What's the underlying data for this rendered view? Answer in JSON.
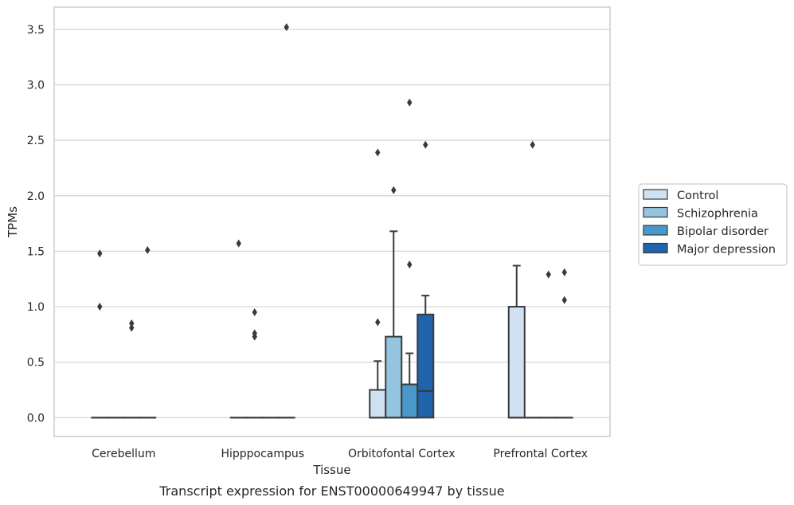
{
  "caption": "Transcript expression for ENST00000649947 by tissue",
  "chart_data": {
    "type": "box",
    "xlabel": "Tissue",
    "ylabel": "TPMs",
    "ylim": [
      -0.17,
      3.7
    ],
    "yticks": [
      0.0,
      0.5,
      1.0,
      1.5,
      2.0,
      2.5,
      3.0,
      3.5
    ],
    "ytick_labels": [
      "0.0",
      "0.5",
      "1.0",
      "1.5",
      "2.0",
      "2.5",
      "3.0",
      "3.5"
    ],
    "categories": [
      "Cerebellum",
      "Hipppocampus",
      "Orbitofontal Cortex",
      "Prefrontal Cortex"
    ],
    "grid": "horizontal",
    "legend_position": "right",
    "series": [
      {
        "name": "Control",
        "color": "#d0e1f2",
        "boxes": [
          {
            "q1": 0,
            "median": 0,
            "q3": 0,
            "whisker_low": 0,
            "whisker_high": 0,
            "outliers": [
              1.48,
              1.0
            ]
          },
          {
            "q1": 0,
            "median": 0,
            "q3": 0,
            "whisker_low": 0,
            "whisker_high": 0,
            "outliers": [
              1.57
            ]
          },
          {
            "q1": 0,
            "median": 0,
            "q3": 0.25,
            "whisker_low": 0,
            "whisker_high": 0.51,
            "outliers": [
              2.39,
              0.86
            ]
          },
          {
            "q1": 0,
            "median": 0,
            "q3": 1.0,
            "whisker_low": 0,
            "whisker_high": 1.37,
            "outliers": []
          }
        ]
      },
      {
        "name": "Schizophrenia",
        "color": "#94c4df",
        "boxes": [
          {
            "q1": 0,
            "median": 0,
            "q3": 0,
            "whisker_low": 0,
            "whisker_high": 0,
            "outliers": []
          },
          {
            "q1": 0,
            "median": 0,
            "q3": 0,
            "whisker_low": 0,
            "whisker_high": 0,
            "outliers": [
              0.95,
              0.76,
              0.73
            ]
          },
          {
            "q1": 0,
            "median": 0,
            "q3": 0.73,
            "whisker_low": 0,
            "whisker_high": 1.68,
            "outliers": [
              2.05
            ]
          },
          {
            "q1": 0,
            "median": 0,
            "q3": 0,
            "whisker_low": 0,
            "whisker_high": 0,
            "outliers": [
              2.46
            ]
          }
        ]
      },
      {
        "name": "Bipolar disorder",
        "color": "#4a98c9",
        "boxes": [
          {
            "q1": 0,
            "median": 0,
            "q3": 0,
            "whisker_low": 0,
            "whisker_high": 0,
            "outliers": [
              0.85,
              0.81
            ]
          },
          {
            "q1": 0,
            "median": 0,
            "q3": 0,
            "whisker_low": 0,
            "whisker_high": 0,
            "outliers": []
          },
          {
            "q1": 0,
            "median": 0,
            "q3": 0.3,
            "whisker_low": 0,
            "whisker_high": 0.58,
            "outliers": [
              2.84,
              1.38
            ]
          },
          {
            "q1": 0,
            "median": 0,
            "q3": 0,
            "whisker_low": 0,
            "whisker_high": 0,
            "outliers": [
              1.29
            ]
          }
        ]
      },
      {
        "name": "Major depression",
        "color": "#2164ab",
        "boxes": [
          {
            "q1": 0,
            "median": 0,
            "q3": 0,
            "whisker_low": 0,
            "whisker_high": 0,
            "outliers": [
              1.51
            ]
          },
          {
            "q1": 0,
            "median": 0,
            "q3": 0,
            "whisker_low": 0,
            "whisker_high": 0,
            "outliers": [
              3.52
            ]
          },
          {
            "q1": 0,
            "median": 0.24,
            "q3": 0.93,
            "whisker_low": 0,
            "whisker_high": 1.1,
            "outliers": [
              2.46
            ]
          },
          {
            "q1": 0,
            "median": 0,
            "q3": 0,
            "whisker_low": 0,
            "whisker_high": 0,
            "outliers": [
              1.31,
              1.06
            ]
          }
        ]
      }
    ]
  }
}
